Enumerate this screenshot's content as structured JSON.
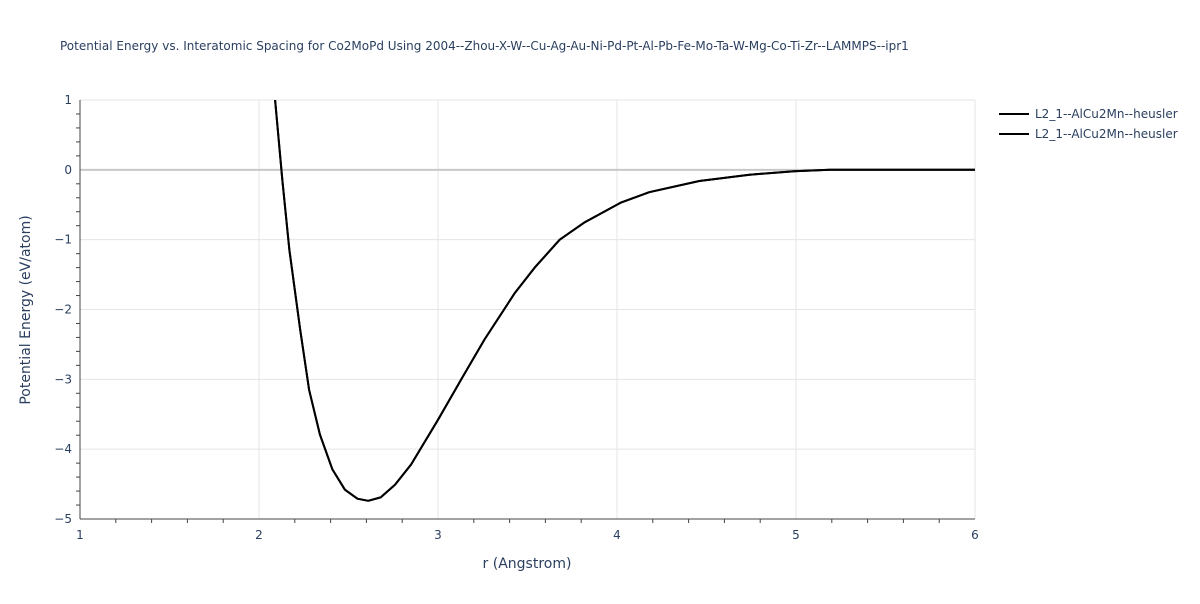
{
  "chart_data": {
    "type": "line",
    "title": "Potential Energy vs. Interatomic Spacing for Co2MoPd Using 2004--Zhou-X-W--Cu-Ag-Au-Ni-Pd-Pt-Al-Pb-Fe-Mo-Ta-W-Mg-Co-Ti-Zr--LAMMPS--ipr1",
    "xlabel": "r (Angstrom)",
    "ylabel": "Potential Energy (eV/atom)",
    "xlim": [
      1,
      6
    ],
    "ylim": [
      -5,
      1
    ],
    "xticks": [
      "1",
      "2",
      "3",
      "4",
      "5",
      "6"
    ],
    "yticks": [
      "1",
      "0",
      "−1",
      "−2",
      "−3",
      "−4",
      "−5"
    ],
    "grid": true,
    "legend_position": "top-right",
    "series": [
      {
        "name": "L2_1--AlCu2Mn--heusler",
        "color": "#000000",
        "x": [
          2.09,
          2.13,
          2.17,
          2.23,
          2.28,
          2.34,
          2.41,
          2.48,
          2.55,
          2.61,
          2.68,
          2.76,
          2.85,
          3.0,
          3.13,
          3.26,
          3.43,
          3.54,
          3.68,
          3.82,
          4.02,
          4.18,
          4.46,
          4.74,
          4.99,
          5.19,
          5.5,
          6.0
        ],
        "y": [
          1.0,
          -0.14,
          -1.15,
          -2.29,
          -3.15,
          -3.79,
          -4.29,
          -4.58,
          -4.71,
          -4.74,
          -4.69,
          -4.51,
          -4.22,
          -3.58,
          -3.0,
          -2.43,
          -1.76,
          -1.4,
          -1.0,
          -0.75,
          -0.47,
          -0.32,
          -0.16,
          -0.07,
          -0.02,
          0.0,
          0.0,
          0.0
        ]
      },
      {
        "name": "L2_1--AlCu2Mn--heusler",
        "color": "#000000",
        "x": [
          2.09,
          2.13,
          2.17,
          2.23,
          2.28,
          2.34,
          2.41,
          2.48,
          2.55,
          2.61,
          2.68,
          2.76,
          2.85,
          3.0,
          3.13,
          3.26,
          3.43,
          3.54,
          3.68,
          3.82,
          4.02,
          4.18,
          4.46,
          4.74,
          4.99,
          5.19,
          5.5,
          6.0
        ],
        "y": [
          1.0,
          -0.14,
          -1.15,
          -2.29,
          -3.15,
          -3.79,
          -4.29,
          -4.58,
          -4.71,
          -4.74,
          -4.69,
          -4.51,
          -4.22,
          -3.58,
          -3.0,
          -2.43,
          -1.76,
          -1.4,
          -1.0,
          -0.75,
          -0.47,
          -0.32,
          -0.16,
          -0.07,
          -0.02,
          0.0,
          0.0,
          0.0
        ]
      }
    ]
  }
}
